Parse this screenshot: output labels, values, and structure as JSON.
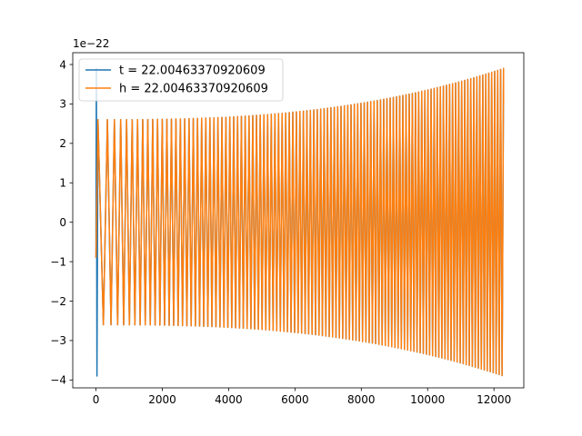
{
  "chart_data": {
    "type": "line",
    "title": "",
    "xlabel": "",
    "ylabel": "",
    "offset_text": "1e−22",
    "xlim": [
      -700,
      12900
    ],
    "ylim": [
      -4.2,
      4.3
    ],
    "xticks": [
      0,
      2000,
      4000,
      6000,
      8000,
      10000,
      12000
    ],
    "yticks": [
      -4,
      -3,
      -2,
      -1,
      0,
      1,
      2,
      3,
      4
    ],
    "xtick_labels": [
      "0",
      "2000",
      "4000",
      "6000",
      "8000",
      "10000",
      "12000"
    ],
    "ytick_labels": [
      "−4",
      "−3",
      "−2",
      "−1",
      "0",
      "1",
      "2",
      "3",
      "4"
    ],
    "grid": false,
    "legend_position": "top-left",
    "series": [
      {
        "name": "t = 22.00463370920609",
        "color": "#1f77b4",
        "x_range": [
          0,
          12290
        ],
        "envelope_start": 2.6,
        "envelope_end": 3.9,
        "start_spike": 3.9,
        "start_value": -0.9,
        "end_value": 3.05,
        "cycles": 220
      },
      {
        "name": "h = 22.00463370920609",
        "color": "#ff7f0e",
        "x_range": [
          0,
          12290
        ],
        "envelope_start": 2.6,
        "envelope_end": 3.9,
        "start_value": -0.9,
        "end_value": 3.0,
        "cycles": 220
      }
    ]
  }
}
